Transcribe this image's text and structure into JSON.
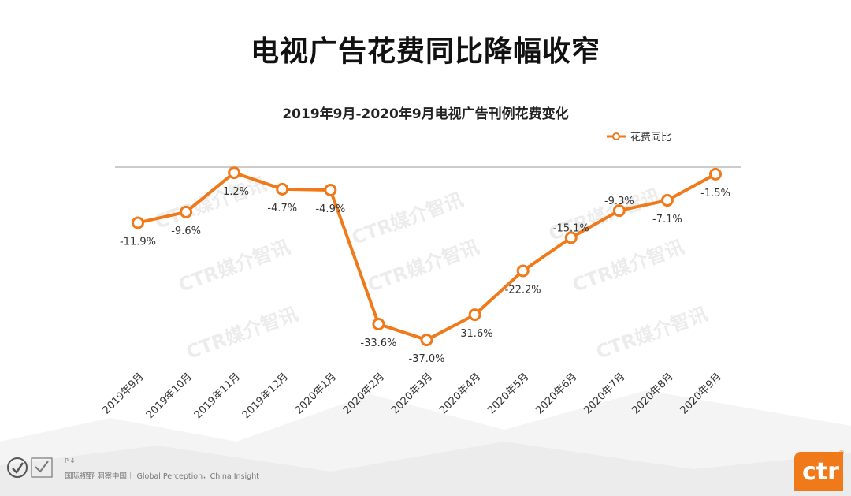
{
  "title": "电视广告花费同比降幅收窄",
  "footer": {
    "page": "P 4",
    "slogan": "国际视野  洞察中国｜ Global Perception，China Insight",
    "logo_text": "ctr",
    "logo_mark": "®"
  },
  "watermark": "CTR媒介智讯",
  "colors": {
    "series": "#F07A1A",
    "axis": "#999999",
    "text": "#333333"
  },
  "chart_data": {
    "type": "line",
    "title": "2019年9月-2020年9月电视广告刊例花费变化",
    "categories": [
      "2019年9月",
      "2019年10月",
      "2019年11月",
      "2019年12月",
      "2020年1月",
      "2020年2月",
      "2020年3月",
      "2020年4月",
      "2020年5月",
      "2020年6月",
      "2020年7月",
      "2020年8月",
      "2020年9月"
    ],
    "series": [
      {
        "name": "花费同比",
        "values": [
          -11.9,
          -9.6,
          -1.2,
          -4.7,
          -4.9,
          -33.6,
          -37.0,
          -31.6,
          -22.2,
          -15.1,
          -9.3,
          -7.1,
          -1.5
        ],
        "labels": [
          "-11.9%",
          "-9.6%",
          "-1.2%",
          "-4.7%",
          "-4.9%",
          "-33.6%",
          "-37.0%",
          "-31.6%",
          "-22.2%",
          "-15.1%",
          "-9.3%",
          "-7.1%",
          "-1.5%"
        ]
      }
    ],
    "ylim": [
      -38,
      0
    ],
    "legend": "top-right",
    "grid": false
  }
}
